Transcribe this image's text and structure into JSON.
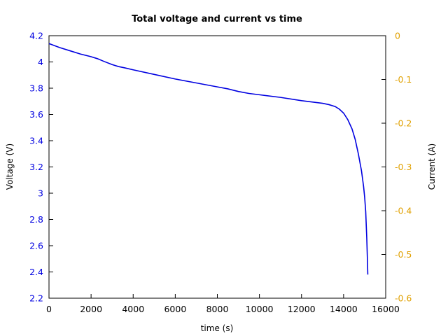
{
  "chart_data": {
    "type": "line",
    "title": "Total voltage and current vs time",
    "xlabel": "time (s)",
    "ylabel": "Voltage (V)",
    "y2label": "Current (A)",
    "xlim": [
      0,
      16000
    ],
    "ylim": [
      2.2,
      4.2
    ],
    "y2lim": [
      -0.6,
      0
    ],
    "xticks": [
      0,
      2000,
      4000,
      6000,
      8000,
      10000,
      12000,
      14000,
      16000
    ],
    "yticks": [
      2.2,
      2.4,
      2.6,
      2.8,
      3,
      3.2,
      3.4,
      3.6,
      3.8,
      4,
      4.2
    ],
    "y2ticks": [
      0,
      -0.1,
      -0.2,
      -0.3,
      -0.4,
      -0.5,
      -0.6
    ],
    "grid": false,
    "colors": {
      "voltage": "#0000e0",
      "current_axis": "#e0a000",
      "axes": "#000000"
    },
    "series": [
      {
        "axis": "left",
        "x": [
          0,
          500,
          1000,
          1500,
          2000,
          2300,
          2600,
          3000,
          3300,
          3600,
          4000,
          5000,
          6000,
          7000,
          8000,
          8500,
          9000,
          9500,
          10000,
          11000,
          12000,
          12500,
          13000,
          13300,
          13600,
          13800,
          14000,
          14200,
          14400,
          14550,
          14700,
          14850,
          14950,
          15000,
          15050,
          15100,
          15130,
          15150
        ],
        "y": [
          4.14,
          4.11,
          4.085,
          4.06,
          4.04,
          4.025,
          4.005,
          3.98,
          3.965,
          3.955,
          3.94,
          3.905,
          3.87,
          3.84,
          3.81,
          3.795,
          3.775,
          3.76,
          3.75,
          3.73,
          3.705,
          3.695,
          3.685,
          3.675,
          3.66,
          3.64,
          3.61,
          3.56,
          3.49,
          3.41,
          3.3,
          3.17,
          3.05,
          2.97,
          2.86,
          2.66,
          2.5,
          2.38
        ]
      }
    ]
  }
}
